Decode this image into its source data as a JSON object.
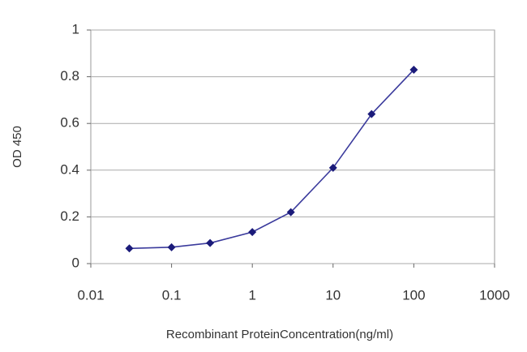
{
  "chart_data": {
    "type": "line",
    "x_label": "Recombinant ProteinConcentration(ng/ml)",
    "y_label": "OD 450",
    "x": [
      0.03,
      0.1,
      0.3,
      1,
      3,
      10,
      30,
      100
    ],
    "values": [
      0.065,
      0.07,
      0.088,
      0.135,
      0.22,
      0.41,
      0.64,
      0.83
    ],
    "color": "#3a3a9c",
    "marker_color": "#1b1b7a",
    "xlog": true,
    "xlim": [
      0.01,
      1000
    ],
    "xticks": [
      0.01,
      0.1,
      1,
      10,
      100,
      1000
    ],
    "ylim": [
      0,
      1
    ],
    "yticks": [
      0,
      0.2,
      0.4,
      0.6,
      0.8,
      1
    ],
    "grid": true
  }
}
